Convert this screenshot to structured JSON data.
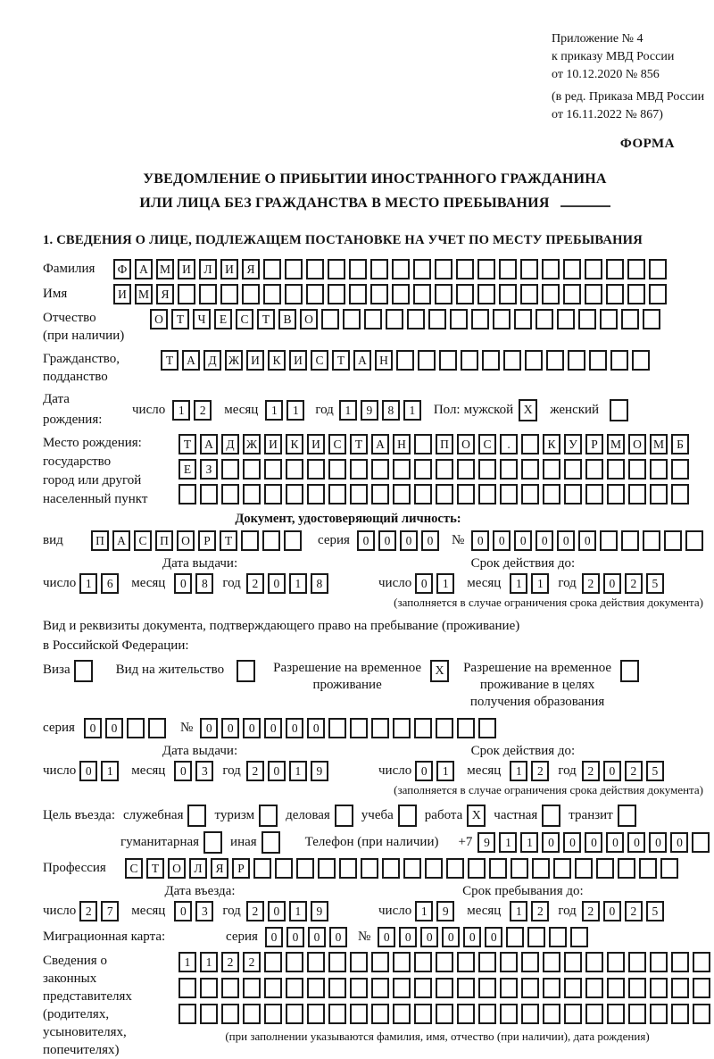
{
  "header": {
    "appendix_lines": [
      "Приложение № 4",
      "к приказу МВД России",
      "от 10.12.2020 № 856"
    ],
    "amendment_lines": [
      "(в ред. Приказа МВД России",
      "от 16.11.2022 № 867)"
    ],
    "form_label": "ФОРМА",
    "title_line1": "УВЕДОМЛЕНИЕ О ПРИБЫТИИ ИНОСТРАННОГО ГРАЖДАНИНА",
    "title_line2": "ИЛИ ЛИЦА БЕЗ ГРАЖДАНСТВА В МЕСТО ПРЕБЫВАНИЯ",
    "section1_heading": "1. СВЕДЕНИЯ О ЛИЦЕ, ПОДЛЕЖАЩЕМ ПОСТАНОВКЕ НА УЧЕТ ПО МЕСТУ ПРЕБЫВАНИЯ"
  },
  "labels": {
    "surname": "Фамилия",
    "name": "Имя",
    "patronymic": "Отчество",
    "patronymic_note": "(при наличии)",
    "citizenship1": "Гражданство,",
    "citizenship2": "подданство",
    "birth_date": "Дата рождения:",
    "day": "число",
    "month": "месяц",
    "year": "год",
    "sex": "Пол:",
    "male": "мужской",
    "female": "женский",
    "birth_place": [
      "Место рождения:",
      "государство",
      "город или другой",
      "населенный пункт"
    ],
    "identity_doc_heading": "Документ, удостоверяющий личность:",
    "doc_type": "вид",
    "series": "серия",
    "number_sign": "№",
    "issue_date": "Дата выдачи:",
    "valid_until": "Срок действия до:",
    "validity_note": "(заполняется в случае ограничения срока действия документа)",
    "resident_doc_line1": "Вид и реквизиты документа, подтверждающего право на пребывание (проживание)",
    "resident_doc_line2": "в Российской Федерации:",
    "visa": "Виза",
    "residence_permit": "Вид на жительство",
    "temp_permit_lines": [
      "Разрешение на временное",
      "проживание"
    ],
    "temp_permit_edu_lines": [
      "Разрешение на временное",
      "проживание в целях",
      "получения образования"
    ],
    "purpose": "Цель въезда:",
    "phone": "Телефон (при наличии)",
    "phone_prefix": "+7",
    "profession": "Профессия",
    "entry_date": "Дата въезда:",
    "stay_until": "Срок пребывания до:",
    "migration_card": "Миграционная карта:",
    "representatives_lines": [
      "Сведения о",
      "законных",
      "представителях",
      "(родителях,",
      "усыновителях,",
      "попечителях)"
    ],
    "representatives_note": "(при заполнении указываются фамилия, имя, отчество (при наличии), дата рождения)"
  },
  "fields": {
    "surname": {
      "value": "ФАМИЛИЯ",
      "boxes": 26
    },
    "name": {
      "value": "ИМЯ",
      "boxes": 26
    },
    "patronymic": {
      "value": "ОТЧЕСТВО",
      "boxes": 24
    },
    "citizenship": {
      "value": "ТАДЖИКИСТАН",
      "boxes": 23
    },
    "birth_date": {
      "day": "12",
      "month": "11",
      "year": "1981"
    },
    "sex": {
      "male": "X",
      "female": ""
    },
    "birth_place_rows": [
      {
        "value": "ТАДЖИКИСТАН ПОС. КУРМОМБ",
        "boxes": 24
      },
      {
        "value": "ЕЗ",
        "boxes": 24
      },
      {
        "value": "",
        "boxes": 24
      }
    ],
    "identity_doc": {
      "type": {
        "value": "ПАСПОРТ",
        "boxes": 10
      },
      "series": {
        "value": "0000",
        "boxes": 4
      },
      "number": {
        "value": "000000",
        "boxes": 11
      },
      "issue": {
        "day": "16",
        "month": "08",
        "year": "2018"
      },
      "valid": {
        "day": "01",
        "month": "11",
        "year": "2025"
      }
    },
    "permits": {
      "visa": "",
      "residence": "",
      "temp": "X",
      "temp_edu": ""
    },
    "resident_doc": {
      "series": {
        "value": "00",
        "boxes": 4
      },
      "number": {
        "value": "000000",
        "boxes": 14
      },
      "issue": {
        "day": "01",
        "month": "03",
        "year": "2019"
      },
      "valid": {
        "day": "01",
        "month": "12",
        "year": "2025"
      }
    },
    "purpose": {
      "items": [
        {
          "label": "служебная",
          "checked": ""
        },
        {
          "label": "туризм",
          "checked": ""
        },
        {
          "label": "деловая",
          "checked": ""
        },
        {
          "label": "учеба",
          "checked": ""
        },
        {
          "label": "работа",
          "checked": "X"
        },
        {
          "label": "частная",
          "checked": ""
        },
        {
          "label": "транзит",
          "checked": ""
        }
      ],
      "items2": [
        {
          "label": "гуманитарная",
          "checked": ""
        },
        {
          "label": "иная",
          "checked": ""
        }
      ]
    },
    "phone": {
      "value": "9110000000",
      "boxes": 11
    },
    "profession": {
      "value": "СТОЛЯР",
      "boxes": 26
    },
    "entry": {
      "day": "27",
      "month": "03",
      "year": "2019"
    },
    "stay": {
      "day": "19",
      "month": "12",
      "year": "2025"
    },
    "migration_card": {
      "series": {
        "value": "0000",
        "boxes": 4
      },
      "number": {
        "value": "000000",
        "boxes": 10
      }
    },
    "representatives_rows": [
      {
        "value": "1122",
        "boxes": 25
      },
      {
        "value": "",
        "boxes": 25
      },
      {
        "value": "",
        "boxes": 25
      }
    ]
  }
}
